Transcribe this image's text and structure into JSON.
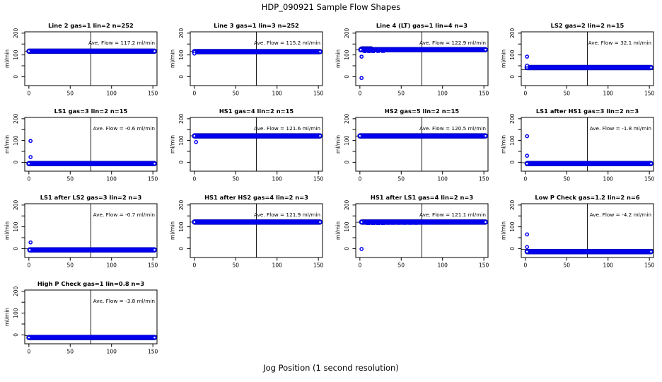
{
  "page": {
    "title": "HDP_090921  Sample Flow Shapes",
    "xlabel": "Jog Position (1 second resolution)"
  },
  "style": {
    "point_color": "#0000ee",
    "point_edge": "#0000a8",
    "axis_color": "#000000",
    "background": "#ffffff"
  },
  "axes": {
    "ylabel": "ml/min",
    "x_ticks": [
      0,
      50,
      100,
      150
    ],
    "y_ticks": [
      0,
      50,
      100,
      150,
      200
    ],
    "y_labeled_ticks": [
      0,
      100,
      200
    ],
    "vline_x": 75,
    "x_domain": [
      -5,
      155
    ],
    "y_domain": [
      -41,
      206
    ]
  },
  "chart_data": [
    {
      "type": "scatter",
      "title": "Line 2 gas=1 lin=2 n=252",
      "ave_label": "Ave. Flow =  117.2  ml/min",
      "ave_flow": 117.2,
      "band": {
        "y": 117,
        "x_start": 0,
        "x_end": 152
      },
      "outliers": [],
      "dashes": []
    },
    {
      "type": "scatter",
      "title": "Line 3 gas=1 lin=3 n=252",
      "ave_label": "Ave. Flow =  115.2  ml/min",
      "ave_flow": 115.2,
      "band": {
        "y": 115,
        "x_start": 0,
        "x_end": 152
      },
      "outliers": [
        [
          0,
          106
        ]
      ],
      "dashes": []
    },
    {
      "type": "scatter",
      "title": "Line 4 (LT) gas=1 lin=4 n=3",
      "ave_label": "Ave. Flow =  122.9  ml/min",
      "ave_flow": 122.9,
      "band": {
        "y": 124,
        "x_start": 1,
        "x_end": 152
      },
      "band2": {
        "y": 128,
        "x_start": 2,
        "x_end": 14
      },
      "outliers": [
        [
          2,
          92
        ],
        [
          2,
          -6
        ]
      ],
      "dashes": [
        [
          6,
          112
        ],
        [
          11,
          112
        ],
        [
          16,
          112
        ],
        [
          22,
          113
        ],
        [
          28,
          113
        ]
      ]
    },
    {
      "type": "scatter",
      "title": "LS2 gas=2 lin=2 n=15",
      "ave_label": "Ave. Flow =  32.1  ml/min",
      "ave_flow": 32.1,
      "band": {
        "y": 42,
        "x_start": 2,
        "x_end": 152
      },
      "outliers": [
        [
          2,
          92
        ],
        [
          2,
          51
        ]
      ],
      "dashes": []
    },
    {
      "type": "scatter",
      "title": "LS1 gas=3 lin=2 n=15",
      "ave_label": "Ave. Flow =  -0.6  ml/min",
      "ave_flow": -0.6,
      "band": {
        "y": -6,
        "x_start": 0,
        "x_end": 152
      },
      "outliers": [
        [
          2,
          98
        ],
        [
          2,
          24
        ]
      ],
      "dashes": []
    },
    {
      "type": "scatter",
      "title": "HS1 gas=4 lin=2 n=15",
      "ave_label": "Ave. Flow =  121.6  ml/min",
      "ave_flow": 121.6,
      "band": {
        "y": 121,
        "x_start": 0,
        "x_end": 152
      },
      "outliers": [
        [
          2,
          93
        ]
      ],
      "dashes": []
    },
    {
      "type": "scatter",
      "title": "HS2 gas=5 lin=2 n=15",
      "ave_label": "Ave. Flow =  120.5  ml/min",
      "ave_flow": 120.5,
      "band": {
        "y": 121,
        "x_start": 0,
        "x_end": 152
      },
      "outliers": [],
      "dashes": []
    },
    {
      "type": "scatter",
      "title": "LS1 after HS1 gas=3 lin=2 n=3",
      "ave_label": "Ave. Flow =  -1.8  ml/min",
      "ave_flow": -1.8,
      "band": {
        "y": -6,
        "x_start": 2,
        "x_end": 152
      },
      "outliers": [
        [
          2,
          120
        ],
        [
          2,
          30
        ]
      ],
      "dashes": []
    },
    {
      "type": "scatter",
      "title": "LS1 after LS2 gas=3 lin=2 n=3",
      "ave_label": "Ave. Flow =  -0.7  ml/min",
      "ave_flow": -0.7,
      "band": {
        "y": -6,
        "x_start": 1,
        "x_end": 152
      },
      "outliers": [
        [
          2,
          28
        ]
      ],
      "dashes": [
        [
          3,
          -15
        ]
      ]
    },
    {
      "type": "scatter",
      "title": "HS1 after HS2 gas=4 lin=2 n=3",
      "ave_label": "Ave. Flow =  121.9  ml/min",
      "ave_flow": 121.9,
      "band": {
        "y": 122,
        "x_start": 0,
        "x_end": 152
      },
      "outliers": [],
      "dashes": []
    },
    {
      "type": "scatter",
      "title": "HS1 after LS1 gas=4 lin=2 n=3",
      "ave_label": "Ave. Flow =  121.1  ml/min",
      "ave_flow": 121.1,
      "band": {
        "y": 122,
        "x_start": 2,
        "x_end": 152
      },
      "outliers": [
        [
          2,
          -2
        ]
      ],
      "dashes": [
        [
          10,
          112
        ],
        [
          16,
          112
        ],
        [
          22,
          112
        ],
        [
          28,
          112
        ],
        [
          34,
          113
        ],
        [
          40,
          113
        ],
        [
          47,
          113
        ],
        [
          54,
          113
        ],
        [
          61,
          113
        ],
        [
          68,
          113
        ],
        [
          76,
          114
        ],
        [
          84,
          114
        ]
      ]
    },
    {
      "type": "scatter",
      "title": "Low P Check gas=1.2 lin=2 n=6",
      "ave_label": "Ave. Flow =  -4.2  ml/min",
      "ave_flow": -4.2,
      "band": {
        "y": -14,
        "x_start": 2,
        "x_end": 152
      },
      "outliers": [
        [
          2,
          65
        ],
        [
          2,
          7
        ]
      ],
      "dashes": []
    },
    {
      "type": "scatter",
      "title": "High P Check gas=1 lin=0.8 n=3",
      "ave_label": "Ave. Flow =  -3.8  ml/min",
      "ave_flow": -3.8,
      "band": {
        "y": -12,
        "x_start": 0,
        "x_end": 152
      },
      "outliers": [],
      "dashes": []
    }
  ]
}
